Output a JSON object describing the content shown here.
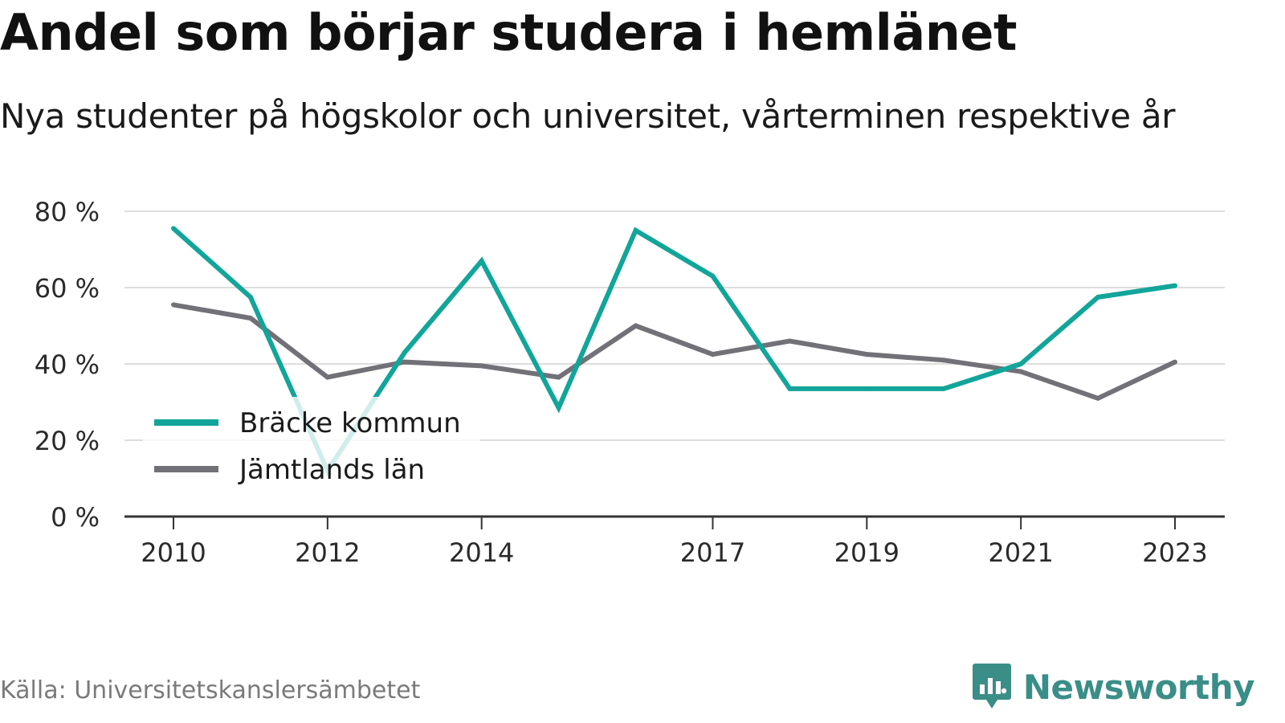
{
  "title": "Andel som börjar studera i hemlänet",
  "subtitle": "Nya studenter på högskolor och universitet, vårterminen respektive år",
  "source": "Källa: Universitetskanslersämbetet",
  "brand": "Newsworthy",
  "colors": {
    "teal": "#12a59a",
    "gray": "#727178",
    "grid": "#dddddd",
    "axis": "#333333",
    "brand": "#3a8e87"
  },
  "chart_data": {
    "type": "line",
    "title": "Andel som börjar studera i hemlänet",
    "subtitle": "Nya studenter på högskolor och universitet, vårterminen respektive år",
    "x": [
      2010,
      2011,
      2012,
      2013,
      2014,
      2015,
      2016,
      2017,
      2018,
      2019,
      2020,
      2021,
      2022,
      2023
    ],
    "x_tick_labels": [
      "2010",
      "2012",
      "2014",
      "2017",
      "2019",
      "2021",
      "2023"
    ],
    "y_tick_labels": [
      "0 %",
      "20 %",
      "40 %",
      "60 %",
      "80 %"
    ],
    "y_ticks": [
      0,
      20,
      40,
      60,
      80
    ],
    "ylim": [
      0,
      80
    ],
    "xlim": [
      2009.4,
      2023.65
    ],
    "grid": true,
    "legend_position": "lower-left",
    "series": [
      {
        "name": "Bräcke kommun",
        "color": "#12a59a",
        "values": [
          75.5,
          57.5,
          12,
          43,
          67,
          28.5,
          75,
          63,
          33.5,
          33.5,
          33.5,
          40,
          57.5,
          60.5
        ]
      },
      {
        "name": "Jämtlands län",
        "color": "#727178",
        "values": [
          55.5,
          52,
          36.5,
          40.5,
          39.5,
          36.5,
          50,
          42.5,
          46,
          42.5,
          41,
          38,
          31,
          40.5
        ]
      }
    ]
  }
}
